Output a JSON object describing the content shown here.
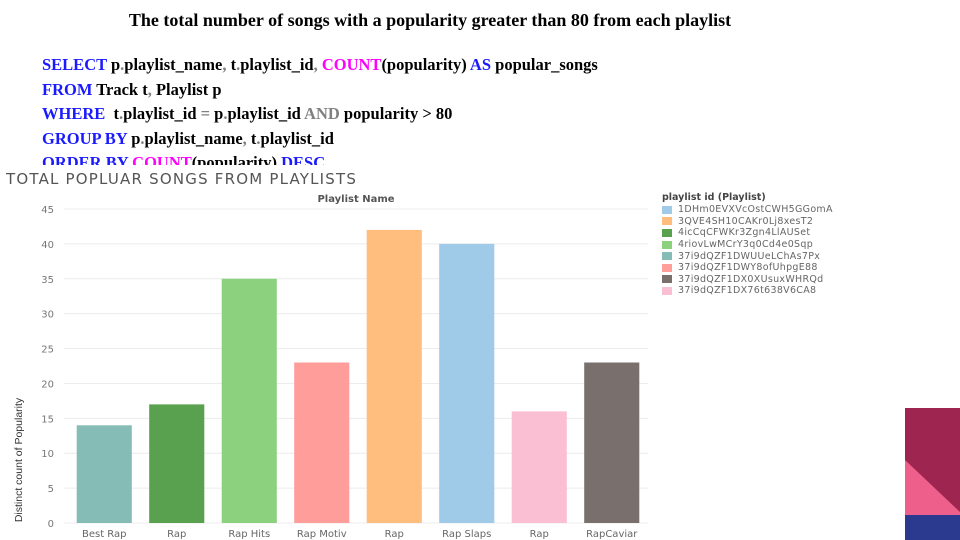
{
  "slide": {
    "title": "The total number of songs with a popularity greater than 80 from each playlist"
  },
  "sql": {
    "line1": [
      "SELECT",
      " p",
      ".",
      "playlist_name",
      ", ",
      "t",
      ".",
      "playlist_id",
      ", ",
      "COUNT",
      "(popularity)",
      " AS",
      " popular_songs"
    ],
    "line2": [
      "FROM",
      " Track t",
      ", ",
      "Playlist p"
    ],
    "line3": [
      "WHERE",
      "  t",
      ".",
      "playlist_id",
      " = ",
      "p",
      ".",
      "playlist_id",
      " AND",
      " popularity > 80"
    ],
    "line4": [
      "GROUP BY",
      " p",
      ".",
      "playlist_name",
      ", ",
      "t",
      ".",
      "playlist_id"
    ],
    "line5": [
      "ORDER BY",
      " COUNT",
      "(popularity)",
      " DESC"
    ]
  },
  "chart_heading": "TOTAL POPLUAR SONGS FROM PLAYLISTS",
  "chart_data": {
    "type": "bar",
    "title": "Playlist Name",
    "ylabel": "Distinct count of Popularity",
    "xlabel": "",
    "ylim": [
      0,
      45
    ],
    "yticks": [
      0,
      5,
      10,
      15,
      20,
      25,
      30,
      35,
      40,
      45
    ],
    "grid": true,
    "categories": [
      "Best Rap",
      "Rap",
      "Rap Hits",
      "Rap Motiv",
      "Rap",
      "Rap Slaps",
      "Rap",
      "RapCaviar"
    ],
    "values": [
      14,
      17,
      35,
      23,
      42,
      40,
      16,
      23
    ],
    "bar_colors": [
      "#86bcb6",
      "#59a14f",
      "#8cd17d",
      "#ff9d9a",
      "#ffbe7d",
      "#a0cbe8",
      "#fabfd2",
      "#79706e"
    ],
    "legend_position": "right",
    "legend": {
      "title": "playlist id (Playlist)",
      "entries": [
        {
          "label": "1DHm0EVXVcOstCWH5GGomA",
          "color": "#a0cbe8"
        },
        {
          "label": "3QVE4SH10CAKr0Lj8xesT2",
          "color": "#ffbe7d"
        },
        {
          "label": "4icCqCFWKr3Zgn4LlAUSet",
          "color": "#59a14f"
        },
        {
          "label": "4riovLwMCrY3q0Cd4e0Sqp",
          "color": "#8cd17d"
        },
        {
          "label": "37i9dQZF1DWUUeLChAs7Px",
          "color": "#86bcb6"
        },
        {
          "label": "37i9dQZF1DWY8ofUhpgE88",
          "color": "#ff9d9a"
        },
        {
          "label": "37i9dQZF1DX0XUsuxWHRQd",
          "color": "#79706e"
        },
        {
          "label": "37i9dQZF1DX76t638V6CA8",
          "color": "#fabfd2"
        }
      ]
    }
  },
  "colors": {
    "sql_keyword": "#1a1aff",
    "sql_function": "#ff00ff",
    "sql_operator": "#808080",
    "deco_maroon": "#9e2550",
    "deco_pink": "#ee5f8c",
    "deco_navy": "#2b3a8f"
  }
}
